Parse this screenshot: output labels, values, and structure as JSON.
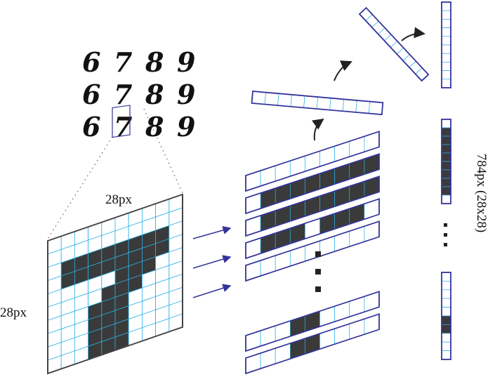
{
  "digits": [
    [
      "6",
      "7",
      "8",
      "9"
    ],
    [
      "6",
      "7",
      "8",
      "9"
    ],
    [
      "6",
      "7",
      "8",
      "9"
    ]
  ],
  "grid_width_label": "28px",
  "grid_height_label": "28px",
  "vector_label": "784px (28x28)"
}
